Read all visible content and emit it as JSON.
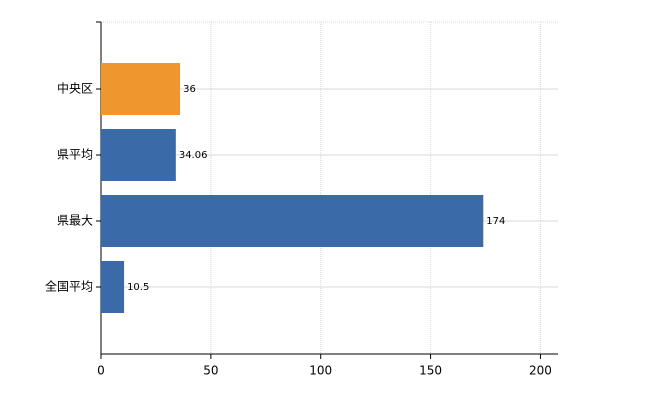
{
  "chart_data": {
    "type": "barh",
    "categories": [
      "中央区",
      "県平均",
      "県最大",
      "全国平均"
    ],
    "values": [
      36,
      34.06,
      174,
      10.5
    ],
    "colors": [
      "#f0962f",
      "#3a6aa8",
      "#3a6aa8",
      "#3a6aa8"
    ],
    "xlim": [
      0,
      208
    ],
    "xticks": [
      0,
      50,
      100,
      150,
      200
    ],
    "grid": true
  }
}
